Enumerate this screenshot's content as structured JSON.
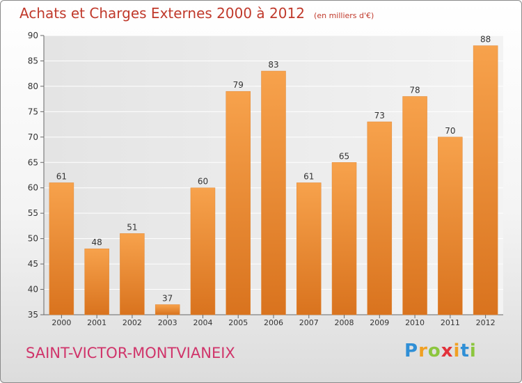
{
  "chart_data": {
    "type": "bar",
    "title": "Achats et Charges Externes 2000 à 2012",
    "subtitle": "(en milliers d'€)",
    "categories": [
      "2000",
      "2001",
      "2002",
      "2003",
      "2004",
      "2005",
      "2006",
      "2007",
      "2008",
      "2009",
      "2010",
      "2011",
      "2012"
    ],
    "values": [
      61,
      48,
      51,
      37,
      60,
      79,
      83,
      61,
      65,
      73,
      78,
      70,
      88
    ],
    "ylim": [
      35,
      90
    ],
    "yticks": [
      35,
      40,
      45,
      50,
      55,
      60,
      65,
      70,
      75,
      80,
      85,
      90
    ],
    "grid": true,
    "bar_color": "#f0943e"
  },
  "commune": "SAINT-VICTOR-MONTVIANEIX",
  "brand": {
    "letters": [
      "P",
      "r",
      "o",
      "x",
      "i",
      "t",
      "i"
    ],
    "colors": [
      "#2f8fd6",
      "#f0a023",
      "#8cc63e",
      "#e2313b",
      "#f0a023",
      "#2f8fd6",
      "#8cc63e"
    ]
  }
}
